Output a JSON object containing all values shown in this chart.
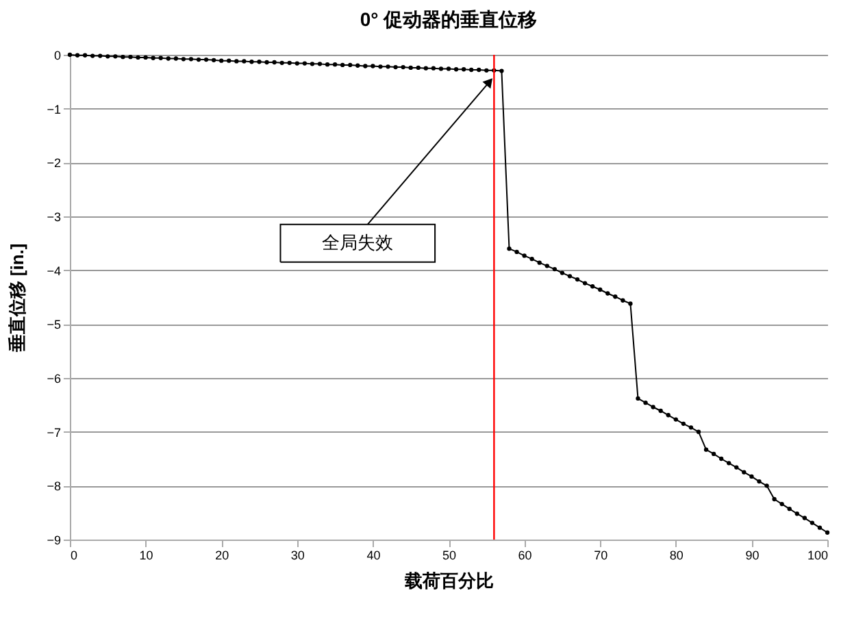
{
  "chart_data": {
    "type": "line",
    "title": "0°  促动器的垂直位移",
    "xlabel": "载荷百分比",
    "ylabel": "垂直位移 [in.]",
    "x": [
      0,
      1,
      2,
      3,
      4,
      5,
      6,
      7,
      8,
      9,
      10,
      11,
      12,
      13,
      14,
      15,
      16,
      17,
      18,
      19,
      20,
      21,
      22,
      23,
      24,
      25,
      26,
      27,
      28,
      29,
      30,
      31,
      32,
      33,
      34,
      35,
      36,
      37,
      38,
      39,
      40,
      41,
      42,
      43,
      44,
      45,
      46,
      47,
      48,
      49,
      50,
      51,
      52,
      53,
      54,
      55,
      56,
      57,
      58,
      59,
      60,
      61,
      62,
      63,
      64,
      65,
      66,
      67,
      68,
      69,
      70,
      71,
      72,
      73,
      74,
      75,
      76,
      77,
      78,
      79,
      80,
      81,
      82,
      83,
      84,
      85,
      86,
      87,
      88,
      89,
      90,
      91,
      92,
      93,
      94,
      95,
      96,
      97,
      98,
      99,
      100
    ],
    "series": [
      {
        "color": "#000000",
        "values": [
          0,
          -0.01,
          -0.01,
          -0.02,
          -0.02,
          -0.03,
          -0.03,
          -0.04,
          -0.04,
          -0.05,
          -0.05,
          -0.06,
          -0.06,
          -0.07,
          -0.07,
          -0.08,
          -0.08,
          -0.09,
          -0.09,
          -0.1,
          -0.11,
          -0.11,
          -0.12,
          -0.12,
          -0.13,
          -0.13,
          -0.14,
          -0.14,
          -0.15,
          -0.15,
          -0.16,
          -0.16,
          -0.17,
          -0.17,
          -0.18,
          -0.18,
          -0.19,
          -0.19,
          -0.2,
          -0.21,
          -0.21,
          -0.22,
          -0.22,
          -0.23,
          -0.23,
          -0.24,
          -0.24,
          -0.25,
          -0.25,
          -0.26,
          -0.26,
          -0.27,
          -0.27,
          -0.28,
          -0.28,
          -0.29,
          -0.29,
          -0.3,
          -3.6,
          -3.66,
          -3.73,
          -3.79,
          -3.86,
          -3.92,
          -3.98,
          -4.05,
          -4.11,
          -4.17,
          -4.24,
          -4.3,
          -4.36,
          -4.43,
          -4.49,
          -4.56,
          -4.62,
          -6.38,
          -6.46,
          -6.54,
          -6.61,
          -6.69,
          -6.77,
          -6.85,
          -6.92,
          -7.0,
          -7.33,
          -7.41,
          -7.5,
          -7.58,
          -7.66,
          -7.75,
          -7.83,
          -7.92,
          -8.0,
          -8.25,
          -8.34,
          -8.43,
          -8.52,
          -8.6,
          -8.69,
          -8.78,
          -8.87
        ]
      }
    ],
    "xlim": [
      0,
      100
    ],
    "xticks": [
      0,
      10,
      20,
      30,
      40,
      50,
      60,
      70,
      80,
      90,
      100
    ],
    "ylim": [
      -9,
      0
    ],
    "yticks": [
      0,
      -1,
      -2,
      -3,
      -4,
      -5,
      -6,
      -7,
      -8,
      -9
    ],
    "ref_lines": [
      {
        "axis": "x",
        "value": 56,
        "color": "#ff0000"
      }
    ],
    "annotations": [
      {
        "text": "全局失效",
        "x": 56,
        "y": -0.3
      }
    ],
    "grid": "y",
    "legend": false,
    "marker": "circle",
    "line_style": "solid"
  }
}
